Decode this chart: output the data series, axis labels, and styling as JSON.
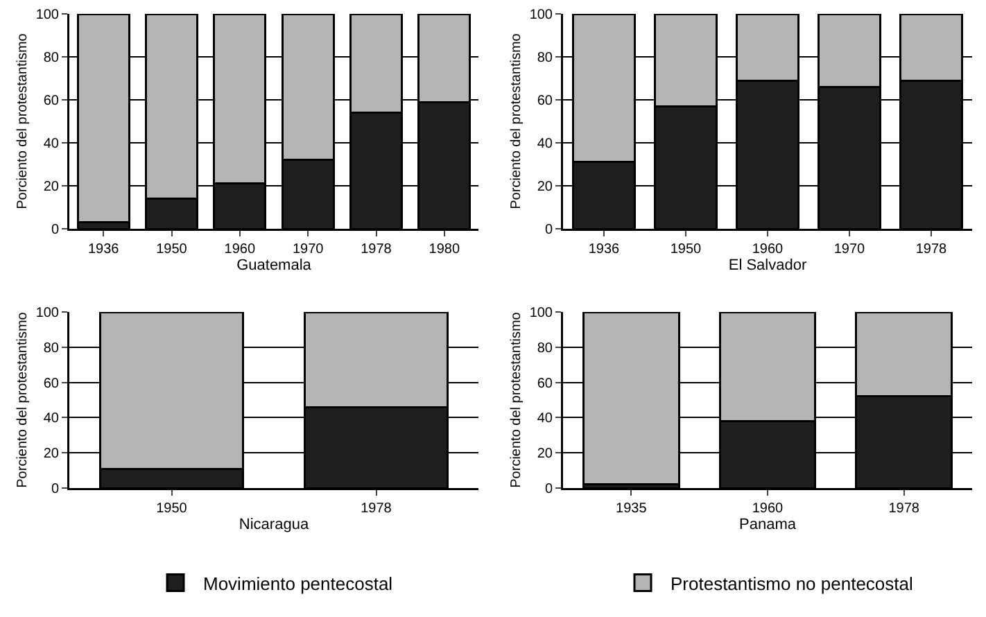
{
  "chart_data": [
    {
      "type": "bar",
      "stacked": true,
      "categories": [
        "1936",
        "1950",
        "1960",
        "1970",
        "1978",
        "1980"
      ],
      "xlabel": "Guatemala",
      "ylabel": "Porciento del protestantismo",
      "ylim": [
        0,
        100
      ],
      "yticks": [
        0,
        20,
        40,
        60,
        80,
        100
      ],
      "grid": "y",
      "series": [
        {
          "color": "#1e1e1e",
          "values": [
            3,
            14,
            21,
            32,
            54,
            59
          ]
        },
        {
          "color": "#b4b4b4",
          "values": [
            97,
            86,
            79,
            68,
            46,
            41
          ]
        }
      ]
    },
    {
      "type": "bar",
      "stacked": true,
      "categories": [
        "1936",
        "1950",
        "1960",
        "1970",
        "1978"
      ],
      "xlabel": "El Salvador",
      "ylabel": "Porciento del protestantismo",
      "ylim": [
        0,
        100
      ],
      "yticks": [
        0,
        20,
        40,
        60,
        80,
        100
      ],
      "grid": "y",
      "series": [
        {
          "color": "#1e1e1e",
          "values": [
            31,
            57,
            69,
            66,
            69
          ]
        },
        {
          "color": "#b4b4b4",
          "values": [
            69,
            43,
            31,
            34,
            31
          ]
        }
      ]
    },
    {
      "type": "bar",
      "stacked": true,
      "categories": [
        "1950",
        "1978"
      ],
      "xlabel": "Nicaragua",
      "ylabel": "Porciento del protestantismo",
      "ylim": [
        0,
        100
      ],
      "yticks": [
        0,
        20,
        40,
        60,
        80,
        100
      ],
      "grid": "y",
      "legend": "bottom",
      "series": [
        {
          "name": "Movimiento pentecostal",
          "color": "#1e1e1e",
          "values": [
            11,
            46
          ]
        },
        {
          "color": "#b4b4b4",
          "values": [
            89,
            54
          ]
        }
      ]
    },
    {
      "type": "bar",
      "stacked": true,
      "categories": [
        "1935",
        "1960",
        "1978"
      ],
      "xlabel": "Panama",
      "ylabel": "Porciento del protestantismo",
      "ylim": [
        0,
        100
      ],
      "yticks": [
        0,
        20,
        40,
        60,
        80,
        100
      ],
      "grid": "y",
      "legend": "bottom",
      "series": [
        {
          "color": "#1e1e1e",
          "values": [
            2,
            38,
            52
          ]
        },
        {
          "name": "Protestantismo no pentecostal",
          "color": "#b4b4b4",
          "values": [
            98,
            62,
            48
          ]
        }
      ]
    }
  ]
}
